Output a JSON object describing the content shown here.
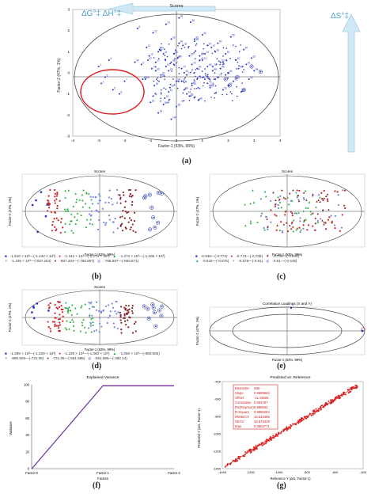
{
  "panel_a": {
    "title": "Scores",
    "xlabel": "Factor-1 (53%, 99%)",
    "ylabel": "Factor-2 (47%, 1%)",
    "xticks": [
      "-4",
      "-3",
      "-2",
      "-1",
      "0",
      "1",
      "2",
      "3",
      "4"
    ],
    "yticks": [
      "3",
      "2",
      "1",
      "0",
      "-1",
      "-2",
      "-3"
    ],
    "label": "(a)",
    "arrow_left_label": "ΔG°‡ ΔH°‡",
    "arrow_right_label": "ΔS°‡",
    "colors": {
      "points": "#2233bb",
      "ellipse": "#333333",
      "highlight": "#e01818",
      "arrow": "#cfe8f3"
    }
  },
  "panel_b": {
    "title": "Scores",
    "xlabel": "Factor-1 (53%, 99%)",
    "ylabel": "Factor-2 (47%, 1%)",
    "label": "(b)",
    "legend": [
      "-1.810 × 10³—(-1.442 × 10³)",
      "-1.442 × 10³—(-1.274 × 10³)",
      "-1.274 × 10³—(-1.105 × 10³)",
      "-1.105 × 10³—(-937.204)",
      "-937.204—(-768.897)",
      "-768.897—(-600.671)"
    ]
  },
  "panel_c": {
    "title": "Scores",
    "xlabel": "Factor-1 (53%, 99%)",
    "ylabel": "Factor-2 (47%, 1%)",
    "label": "(c)",
    "legend": [
      "-0.939—(-0.773)",
      "-0.773—(-0.708)",
      "-0.708—(-0.642)",
      "-0.642—(-0.576)",
      "-0.576—(-0.51)",
      "-0.51—(-0.445)"
    ]
  },
  "panel_d": {
    "title": "Scores",
    "xlabel": "Factor-1 (53%, 99%)",
    "ylabel": "Factor-2 (47%, 1%)",
    "label": "(d)",
    "legend": [
      "-1.399 × 10³—(-1.229 × 10³)",
      "-1.229 × 10³—(-1.060 × 10³)",
      "-1.060 × 10³—(-890.506)",
      "-890.506—(-721.05)",
      "-721.05—(-551.595)",
      "-551.595—(-382.14)"
    ]
  },
  "panel_e": {
    "title": "Correlation Loadings (X and Y)",
    "xlabel": "Factor-1 (53%, 99%)",
    "ylabel": "Factor-2 (47%, 1%)",
    "label": "(e)"
  },
  "panel_f": {
    "title": "Explained Variance",
    "xlabel": "Factors",
    "ylabel": "Variance",
    "label": "(f)"
  },
  "panel_g": {
    "title": "Predicted vs. Reference",
    "xlabel": "Reference Y (ΔG, Factor-1)",
    "ylabel": "Predicted Y (ΔG, Factor-1)",
    "label": "(g)",
    "stats": [
      [
        "Elements:",
        "256"
      ],
      [
        "Slope",
        "0.9869662"
      ],
      [
        "Offset",
        "-11.15506"
      ],
      [
        "Correlation",
        "0.994787"
      ],
      [
        "R2(Pearson)",
        "0.989642"
      ],
      [
        "R-Square",
        "0.9895284"
      ],
      [
        "RMSECV",
        "15.643486"
      ],
      [
        "SECV",
        "15.673429"
      ],
      [
        "Bias",
        "0.2853771"
      ]
    ]
  },
  "chart_data": [
    {
      "type": "scatter",
      "panel": "a",
      "title": "Scores",
      "xlabel": "Factor-1 (53%, 99%)",
      "ylabel": "Factor-2 (47%, 1%)",
      "xlim": [
        -4,
        4
      ],
      "ylim": [
        -3,
        3
      ],
      "grid": false,
      "series": [
        {
          "x": [
            -3.0,
            -2.9,
            -2.75,
            -2.6,
            -2.45,
            -2.2,
            -2.0,
            -1.5,
            -1.35,
            -1.2,
            -1.15,
            -1.05,
            -1.0,
            -0.95,
            -0.9,
            -0.85,
            -0.8,
            -0.7,
            -0.65,
            -0.6,
            -0.5,
            -0.45,
            -0.4,
            -0.3,
            -0.25,
            -0.2,
            -0.1,
            0.0,
            0.05,
            0.1,
            0.2,
            0.25,
            0.3,
            0.4,
            0.5,
            0.55,
            0.6,
            0.7,
            0.8,
            0.85,
            0.9,
            1.0,
            1.05,
            1.1,
            1.2,
            1.3,
            1.35,
            1.4,
            1.5,
            1.6,
            1.7,
            1.8,
            1.9,
            2.0,
            2.1,
            2.2,
            2.3,
            2.4,
            2.5,
            2.6,
            2.7,
            2.8,
            2.9,
            3.0,
            -0.8,
            -0.6,
            -0.4,
            -0.2,
            0.0,
            0.2,
            0.4,
            0.6,
            0.8,
            1.0,
            1.2,
            1.4,
            1.6,
            1.8,
            2.0,
            -0.7,
            -0.3,
            0.1,
            0.5,
            0.9,
            1.3,
            1.7,
            -1.1,
            -0.5,
            0.3,
            0.7,
            1.1,
            1.5,
            1.9,
            -0.9,
            -0.1,
            0.6,
            1.2,
            -1.3,
            -1.6,
            -0.2
          ],
          "y": [
            0.3,
            -0.5,
            -0.2,
            0.6,
            -0.8,
            -1.0,
            -0.4,
            2.1,
            0.4,
            -0.3,
            1.2,
            0.8,
            -1.4,
            0.2,
            1.9,
            -0.6,
            0.5,
            -1.9,
            1.1,
            -0.1,
            0.9,
            -1.2,
            2.3,
            0.1,
            -0.7,
            1.6,
            0.4,
            -1.6,
            0.7,
            2.6,
            -0.4,
            1.3,
            0.0,
            -1.0,
            0.8,
            2.4,
            -0.5,
            1.5,
            0.2,
            -1.3,
            0.6,
            1.8,
            -0.2,
            0.9,
            0.3,
            -0.6,
            1.2,
            0.1,
            -0.3,
            1.4,
            0.5,
            -0.8,
            0.9,
            0.0,
            1.7,
            -0.4,
            0.6,
            0.2,
            -0.9,
            1.1,
            0.4,
            -0.3,
            0.7,
            0.1,
            0.1,
            -0.2,
            0.3,
            0.5,
            -0.4,
            0.2,
            -0.1,
            0.4,
            -0.3,
            0.6,
            -0.5,
            0.3,
            -0.2,
            0.5,
            -0.6,
            1.0,
            -0.9,
            1.4,
            -1.1,
            0.8,
            -0.7,
            0.2,
            0.6,
            -1.5,
            -0.8,
            1.6,
            -0.3,
            1.0,
            -0.1,
            -1.1,
            0.9,
            -0.6,
            1.3,
            -0.3,
            0.5,
            -2.2
          ]
        }
      ]
    },
    {
      "type": "line",
      "panel": "f",
      "title": "Explained Variance",
      "xlabel": "Factors",
      "ylabel": "Variance",
      "categories": [
        "Factor-0",
        "Factor-1",
        "Factor-2"
      ],
      "ylim": [
        0,
        100
      ],
      "yticks": [
        0,
        20,
        40,
        60,
        80,
        100
      ],
      "series": [
        {
          "values": [
            0,
            99,
            99
          ],
          "color": "#cc1144"
        },
        {
          "values": [
            0,
            99,
            99
          ],
          "color": "#3344cc"
        }
      ]
    },
    {
      "type": "scatter",
      "panel": "g",
      "title": "Predicted vs. Reference",
      "xlabel": "Reference Y (ΔG, Factor-1)",
      "ylabel": "Predicted Y (ΔG, Factor-1)",
      "xlim": [
        -1400,
        -400
      ],
      "ylim": [
        -1400,
        -400
      ],
      "xticks": [
        -1400,
        -1200,
        -1000,
        -800,
        -600,
        -400
      ],
      "yticks": [
        -1400,
        -1200,
        -1000,
        -800,
        -600,
        -400
      ],
      "fit": {
        "slope": 0.9869662,
        "offset": -11.15506
      },
      "x_range": [
        -1380,
        -440
      ]
    }
  ]
}
